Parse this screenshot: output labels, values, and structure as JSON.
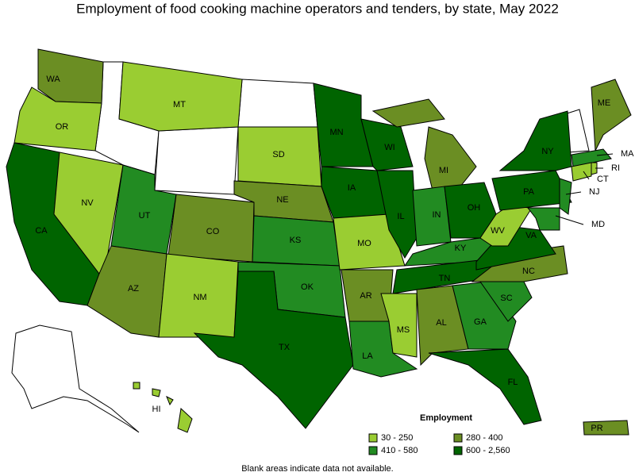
{
  "header": {
    "title": "Employment of food cooking machine operators and tenders, by state, May 2022"
  },
  "states": [
    {
      "label": "WA",
      "color": "#6b8e23"
    },
    {
      "label": "OR",
      "color": "#9acd32"
    },
    {
      "label": "CA",
      "color": "#006400"
    },
    {
      "label": "NV",
      "color": "#9acd32"
    },
    {
      "label": "MT",
      "color": "#9acd32"
    },
    {
      "label": "UT",
      "color": "#228b22"
    },
    {
      "label": "AZ",
      "color": "#6b8e23"
    },
    {
      "label": "CO",
      "color": "#6b8e23"
    },
    {
      "label": "NM",
      "color": "#9acd32"
    },
    {
      "label": "SD",
      "color": "#9acd32"
    },
    {
      "label": "NE",
      "color": "#6b8e23"
    },
    {
      "label": "KS",
      "color": "#228b22"
    },
    {
      "label": "OK",
      "color": "#228b22"
    },
    {
      "label": "TX",
      "color": "#006400"
    },
    {
      "label": "MN",
      "color": "#006400"
    },
    {
      "label": "IA",
      "color": "#006400"
    },
    {
      "label": "MO",
      "color": "#9acd32"
    },
    {
      "label": "AR",
      "color": "#6b8e23"
    },
    {
      "label": "LA",
      "color": "#228b22"
    },
    {
      "label": "WI",
      "color": "#006400"
    },
    {
      "label": "IL",
      "color": "#006400"
    },
    {
      "label": "MI",
      "color": "#6b8e23"
    },
    {
      "label": "IN",
      "color": "#228b22"
    },
    {
      "label": "OH",
      "color": "#006400"
    },
    {
      "label": "KY",
      "color": "#228b22"
    },
    {
      "label": "TN",
      "color": "#006400"
    },
    {
      "label": "MS",
      "color": "#9acd32"
    },
    {
      "label": "AL",
      "color": "#6b8e23"
    },
    {
      "label": "GA",
      "color": "#228b22"
    },
    {
      "label": "FL",
      "color": "#006400"
    },
    {
      "label": "SC",
      "color": "#228b22"
    },
    {
      "label": "NC",
      "color": "#6b8e23"
    },
    {
      "label": "VA",
      "color": "#006400"
    },
    {
      "label": "WV",
      "color": "#9acd32"
    },
    {
      "label": "PA",
      "color": "#006400"
    },
    {
      "label": "NY",
      "color": "#006400"
    },
    {
      "label": "ME",
      "color": "#6b8e23"
    },
    {
      "label": "MA",
      "color": "#228b22"
    },
    {
      "label": "CT",
      "color": "#9acd32"
    },
    {
      "label": "RI",
      "color": "#9acd32"
    },
    {
      "label": "NJ",
      "color": "#228b22"
    },
    {
      "label": "MD",
      "color": "#228b22"
    },
    {
      "label": "HI",
      "color": "#9acd32"
    },
    {
      "label": "PR",
      "color": "#6b8e23"
    }
  ],
  "legend": {
    "title": "Employment",
    "items": [
      {
        "label": "30 - 250",
        "color": "#9acd32"
      },
      {
        "label": "280 - 400",
        "color": "#6b8e23"
      },
      {
        "label": "410 - 580",
        "color": "#228b22"
      },
      {
        "label": "600 - 2,560",
        "color": "#006400"
      }
    ]
  },
  "footnote": "Blank areas indicate data not available."
}
